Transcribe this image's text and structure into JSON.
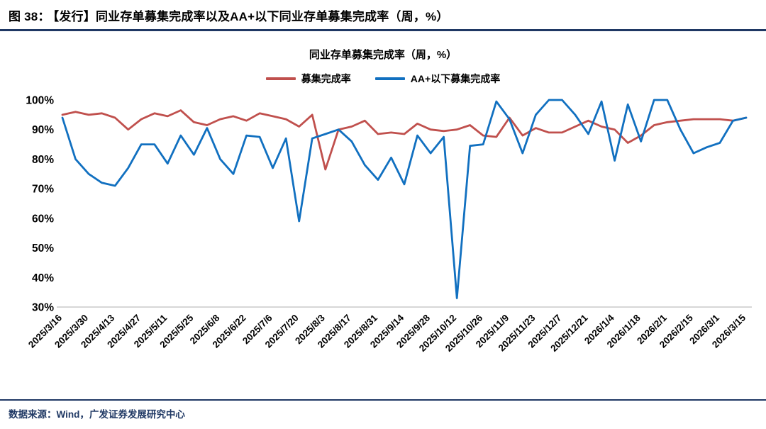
{
  "figure_header": {
    "label": "图 38：",
    "title": "【发行】同业存单募集完成率以及AA+以下同业存单募集完成率（周，%）"
  },
  "chart_data": {
    "type": "line",
    "title": "同业存单募集完成率（周，%）",
    "ylim": [
      30,
      100
    ],
    "y_ticks": [
      100,
      90,
      80,
      70,
      60,
      50,
      40,
      30
    ],
    "y_tick_suffix": "%",
    "grid": false,
    "legend_position": "top",
    "x_tick_every": 2,
    "x_tick_labels": [
      "2025/3/16",
      "2025/3/30",
      "2025/4/13",
      "2025/4/27",
      "2025/5/11",
      "2025/5/25",
      "2025/6/8",
      "2025/6/22",
      "2025/7/6",
      "2025/7/20",
      "2025/8/3",
      "2025/8/17",
      "2025/8/31",
      "2025/9/14",
      "2025/9/28",
      "2025/10/12",
      "2025/10/26",
      "2025/11/9",
      "2025/11/23",
      "2025/12/7",
      "2025/12/21",
      "2026/1/4",
      "2026/1/18",
      "2026/2/1",
      "2026/2/15",
      "2026/3/1",
      "2026/3/15"
    ],
    "series": [
      {
        "name": "募集完成率",
        "color": "#c0504d",
        "values": [
          95,
          96,
          95,
          95.5,
          94,
          90,
          93.5,
          95.5,
          94.5,
          96.5,
          92.5,
          91.5,
          93.5,
          94.5,
          93,
          95.5,
          94.5,
          93.5,
          91,
          95,
          76.5,
          90,
          91,
          93,
          88.5,
          89,
          88.5,
          92,
          90,
          89.5,
          90,
          91.5,
          88,
          87.5,
          94,
          88,
          90.5,
          89,
          89,
          91,
          93,
          91,
          90,
          85.5,
          88,
          91.5,
          92.5,
          93,
          93.5,
          93.5,
          93.5,
          93,
          94
        ]
      },
      {
        "name": "AA+以下募集完成率",
        "color": "#1170c0",
        "values": [
          94,
          80,
          75,
          72,
          71,
          77,
          85,
          85,
          78.5,
          88,
          81.5,
          90.5,
          80,
          75,
          88,
          87.5,
          77,
          87,
          59,
          87,
          88.5,
          90,
          86,
          78,
          73,
          80.5,
          71.5,
          88,
          82,
          87.5,
          33,
          84.5,
          85,
          99.5,
          93.5,
          82,
          95,
          100,
          100,
          95,
          88.5,
          99.5,
          79.5,
          98.5,
          86,
          100,
          100,
          90,
          82,
          84,
          85.5,
          93,
          94
        ]
      }
    ]
  },
  "footer": {
    "source": "数据来源：Wind，广发证券发展研究中心"
  }
}
